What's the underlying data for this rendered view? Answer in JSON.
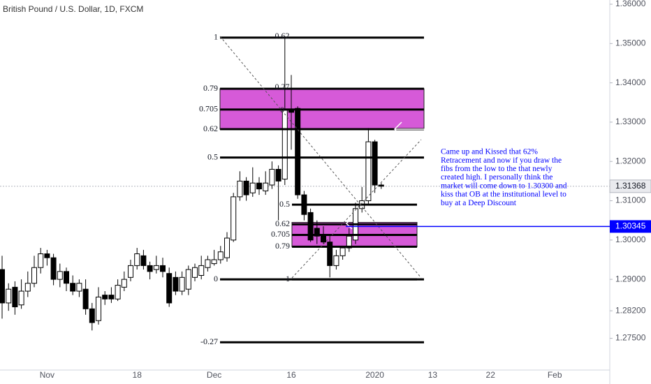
{
  "chart_data": {
    "type": "candlestick",
    "title": "British Pound / U.S. Dollar, 1D, FXCM",
    "categories": [
      null,
      null,
      null,
      null,
      null,
      null,
      null,
      "Nov",
      null,
      null,
      null,
      null,
      null,
      null,
      null,
      null,
      null,
      null,
      null,
      null,
      null,
      "18",
      null,
      null,
      null,
      null,
      null,
      null,
      null,
      null,
      null,
      null,
      null,
      "Dec",
      null,
      null,
      null,
      null,
      null,
      null,
      null,
      null,
      null,
      null,
      null,
      "16",
      null,
      null,
      null,
      null,
      null,
      null,
      null,
      null,
      null,
      null,
      null,
      null,
      "2020",
      null,
      null,
      null,
      null,
      null,
      null,
      null,
      null,
      "13",
      null,
      null,
      null,
      null,
      null,
      null,
      null,
      null,
      "22",
      null,
      null,
      null,
      null,
      null,
      null,
      null,
      null,
      null,
      "Feb"
    ],
    "open": [
      1.2925,
      1.284,
      1.288,
      1.2835,
      1.287,
      1.289,
      1.293,
      1.2965,
      1.2955,
      1.29,
      1.292,
      1.289,
      1.287,
      1.2875,
      1.2825,
      1.2795,
      1.286,
      1.286,
      1.285,
      1.288,
      1.2905,
      1.2935,
      1.296,
      1.2935,
      1.2925,
      1.2935,
      1.2915,
      1.2905,
      1.287,
      1.2875,
      1.2905,
      1.291,
      1.293,
      1.294,
      1.295,
      1.2955,
      1.3,
      1.311,
      1.315,
      1.312,
      1.3145,
      1.3125,
      1.314,
      1.318,
      1.3155,
      1.333,
      1.3335,
      1.3115,
      1.307,
      1.303,
      1.301,
      1.2995,
      1.2935,
      1.296,
      1.298,
      1.3,
      1.308,
      1.31,
      1.325,
      1.314,
      null,
      null,
      null,
      null,
      null,
      null,
      null,
      null,
      null,
      null,
      null,
      null,
      null,
      null,
      null,
      null,
      null,
      null,
      null,
      null,
      null,
      null,
      null,
      null,
      null,
      null,
      null
    ],
    "high": [
      1.296,
      1.289,
      1.2895,
      1.29,
      1.292,
      1.296,
      1.298,
      1.2975,
      1.2965,
      1.294,
      1.293,
      1.291,
      1.29,
      1.29,
      1.284,
      1.288,
      1.287,
      1.288,
      1.29,
      1.292,
      1.295,
      1.298,
      1.2975,
      1.2945,
      1.296,
      1.2955,
      1.293,
      1.292,
      1.292,
      1.2935,
      1.294,
      1.296,
      1.296,
      1.2975,
      1.2985,
      1.302,
      1.312,
      1.3175,
      1.316,
      1.3185,
      1.316,
      1.3175,
      1.32,
      1.319,
      1.3515,
      1.342,
      1.334,
      1.3125,
      1.308,
      1.305,
      1.3035,
      1.301,
      1.2975,
      1.2985,
      1.303,
      1.3095,
      1.3135,
      1.3285,
      1.3255,
      1.3145,
      null,
      null,
      null,
      null,
      null,
      null,
      null,
      null,
      null,
      null,
      null,
      null,
      null,
      null,
      null,
      null,
      null,
      null,
      null,
      null,
      null,
      null,
      null,
      null,
      null,
      null,
      null
    ],
    "low": [
      1.28,
      1.282,
      1.281,
      1.2825,
      1.2855,
      1.288,
      1.2915,
      1.2935,
      1.2885,
      1.288,
      1.287,
      1.286,
      1.2855,
      1.281,
      1.277,
      1.2785,
      1.2835,
      1.284,
      1.2845,
      1.287,
      1.2895,
      1.2925,
      1.2925,
      1.29,
      1.2915,
      1.2905,
      1.283,
      1.286,
      1.286,
      1.286,
      1.2895,
      1.29,
      1.292,
      1.2935,
      1.294,
      1.2945,
      1.2995,
      1.31,
      1.31,
      1.311,
      1.3115,
      1.3115,
      1.313,
      1.305,
      1.314,
      1.323,
      1.3105,
      1.305,
      1.2995,
      1.299,
      1.299,
      1.2905,
      1.2925,
      1.295,
      1.297,
      1.299,
      1.307,
      1.309,
      1.312,
      1.313,
      null,
      null,
      null,
      null,
      null,
      null,
      null,
      null,
      null,
      null,
      null,
      null,
      null,
      null,
      null,
      null,
      null,
      null,
      null,
      null,
      null,
      null,
      null,
      null,
      null,
      null,
      null
    ],
    "close": [
      1.284,
      1.2875,
      1.283,
      1.287,
      1.289,
      1.293,
      1.2965,
      1.2955,
      1.29,
      1.292,
      1.289,
      1.287,
      1.289,
      1.2825,
      1.279,
      1.2855,
      1.285,
      1.285,
      1.2885,
      1.29,
      1.2935,
      1.2965,
      1.2935,
      1.292,
      1.2935,
      1.292,
      1.284,
      1.287,
      1.2905,
      1.2925,
      1.293,
      1.2935,
      1.295,
      1.295,
      1.297,
      1.3005,
      1.311,
      1.315,
      1.3115,
      1.3145,
      1.313,
      1.3145,
      1.318,
      1.315,
      1.333,
      1.3325,
      1.3115,
      1.3065,
      1.3,
      1.301,
      1.2995,
      1.2935,
      1.296,
      1.298,
      1.301,
      1.308,
      1.31,
      1.325,
      1.314,
      1.3137,
      null,
      null,
      null,
      null,
      null,
      null,
      null,
      null,
      null,
      null,
      null,
      null,
      null,
      null,
      null,
      null,
      null,
      null,
      null,
      null,
      null,
      null,
      null,
      null,
      null,
      null,
      null
    ],
    "up_color": "#ffffff",
    "down_color": "#000000",
    "ylim": [
      1.26693,
      1.36107
    ],
    "yticks": [
      {
        "value": 1.36,
        "label": "1.36000"
      },
      {
        "value": 1.35,
        "label": "1.35000"
      },
      {
        "value": 1.34,
        "label": "1.34000"
      },
      {
        "value": 1.33,
        "label": "1.33000"
      },
      {
        "value": 1.32,
        "label": "1.32000"
      },
      {
        "value": 1.31,
        "label": "1.31000"
      },
      {
        "value": 1.3,
        "label": "1.30000"
      },
      {
        "value": 1.29,
        "label": "1.29000"
      },
      {
        "value": 1.282,
        "label": "1.28200"
      },
      {
        "value": 1.275,
        "label": "1.27500"
      }
    ],
    "last_price": 1.31368,
    "marker_price": 1.30345,
    "marker_color": "#0000ff",
    "zone_color": "#d65ad8",
    "zones": [
      {
        "top": 1.3385,
        "bottom": 1.3282
      },
      {
        "top": 1.3045,
        "bottom": 1.2983
      }
    ],
    "fib_levels": [
      {
        "label": "1",
        "value": 1.3515
      },
      {
        "label": "0.79",
        "value": 1.3385
      },
      {
        "label": "0.705",
        "value": 1.3332
      },
      {
        "label": "0.62",
        "value": 1.3282
      },
      {
        "label": "0.5",
        "value": 1.321
      },
      {
        "label": "0",
        "value": 1.29
      },
      {
        "label": "-0.27",
        "value": 1.274
      }
    ],
    "fib2_levels": [
      {
        "label": "0.5",
        "value": 1.309
      },
      {
        "label": "0.62",
        "value": 1.304
      },
      {
        "label": "0.705",
        "value": 1.3013
      },
      {
        "label": "0.79",
        "value": 1.2983
      },
      {
        "label": "1",
        "value": 1.29
      }
    ],
    "fib3_labels": [
      {
        "label": "0.62",
        "value": 1.3518
      },
      {
        "label": "0.27",
        "value": 1.3388
      },
      {
        "label": "0",
        "value": 1.333
      }
    ],
    "annotation": [
      "Came up and Kissed that 62%",
      "Retracement and now if you draw the",
      "fibs from the low to the that newly",
      "created high. I personally think the",
      "market will come down to 1.30300 and",
      "kiss that OB at the institutional level to",
      "buy at a Deep Discount"
    ]
  }
}
